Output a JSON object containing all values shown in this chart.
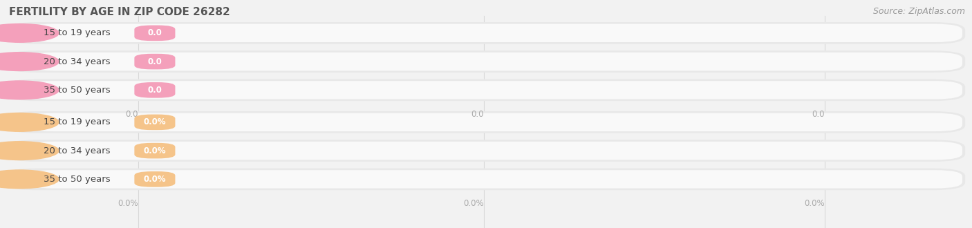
{
  "title": "FERTILITY BY AGE IN ZIP CODE 26282",
  "source_text": "Source: ZipAtlas.com",
  "background_color": "#f2f2f2",
  "row_groups": [
    {
      "rows": [
        {
          "label": "15 to 19 years",
          "value_str": "0.0"
        },
        {
          "label": "20 to 34 years",
          "value_str": "0.0"
        },
        {
          "label": "35 to 50 years",
          "value_str": "0.0"
        }
      ],
      "bar_color": "#f4a0bb",
      "circle_color": "#f4a0bb",
      "axis_tick_labels": [
        "0.0",
        "0.0",
        "0.0"
      ]
    },
    {
      "rows": [
        {
          "label": "15 to 19 years",
          "value_str": "0.0%"
        },
        {
          "label": "20 to 34 years",
          "value_str": "0.0%"
        },
        {
          "label": "35 to 50 years",
          "value_str": "0.0%"
        }
      ],
      "bar_color": "#f5c48a",
      "circle_color": "#f5c48a",
      "axis_tick_labels": [
        "0.0%",
        "0.0%",
        "0.0%"
      ]
    }
  ],
  "x_tick_positions": [
    0.0,
    0.5,
    1.0
  ],
  "title_fontsize": 11,
  "label_fontsize": 9.5,
  "value_fontsize": 8.5,
  "source_fontsize": 9,
  "pill_bg_color": "#e8e8e8",
  "pill_inner_color": "#f9f9f9",
  "grid_color": "#d8d8d8",
  "tick_label_color": "#aaaaaa",
  "label_color": "#444444",
  "title_color": "#555555"
}
